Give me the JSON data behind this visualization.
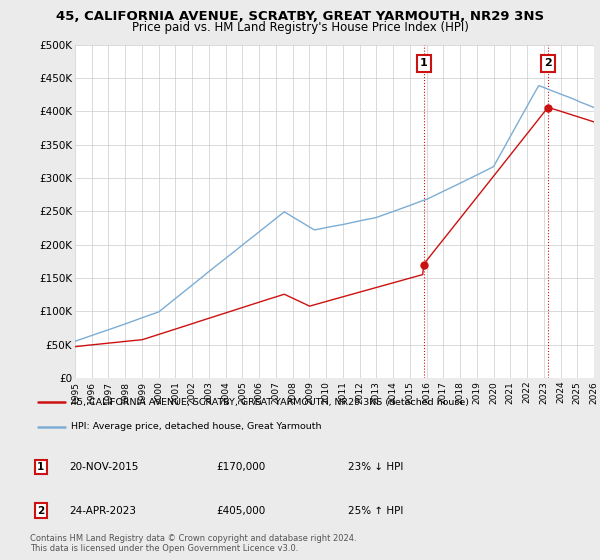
{
  "title": "45, CALIFORNIA AVENUE, SCRATBY, GREAT YARMOUTH, NR29 3NS",
  "subtitle": "Price paid vs. HM Land Registry's House Price Index (HPI)",
  "title_fontsize": 9.5,
  "subtitle_fontsize": 8.5,
  "ylim": [
    0,
    500000
  ],
  "yticks": [
    0,
    50000,
    100000,
    150000,
    200000,
    250000,
    300000,
    350000,
    400000,
    450000,
    500000
  ],
  "ytick_labels": [
    "£0",
    "£50K",
    "£100K",
    "£150K",
    "£200K",
    "£250K",
    "£300K",
    "£350K",
    "£400K",
    "£450K",
    "£500K"
  ],
  "hpi_color": "#7dadd4",
  "price_color": "#cc1111",
  "legend_line1": "45, CALIFORNIA AVENUE, SCRATBY, GREAT YARMOUTH, NR29 3NS (detached house)",
  "legend_line2": "HPI: Average price, detached house, Great Yarmouth",
  "transaction1_date": "20-NOV-2015",
  "transaction1_price": "£170,000",
  "transaction1_hpi": "23% ↓ HPI",
  "transaction2_date": "24-APR-2023",
  "transaction2_price": "£405,000",
  "transaction2_hpi": "25% ↑ HPI",
  "footer": "Contains HM Land Registry data © Crown copyright and database right 2024.\nThis data is licensed under the Open Government Licence v3.0.",
  "background_color": "#ebebeb",
  "plot_bg_color": "#ffffff",
  "grid_color": "#cccccc",
  "xlim": [
    1995,
    2026
  ],
  "xtick_start": 1995,
  "xtick_end": 2027
}
